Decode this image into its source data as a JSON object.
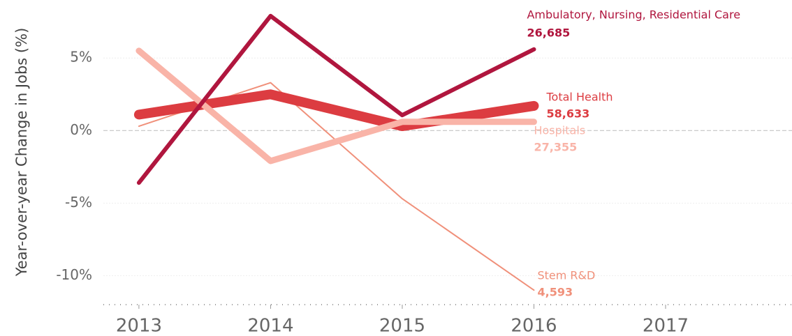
{
  "chart_data": {
    "type": "line",
    "y_label": "Year-over-year Change in Jobs (%)",
    "x": [
      2013,
      2014,
      2015,
      2016
    ],
    "xlim": [
      2012.73,
      2017.96
    ],
    "xticks": [
      2013,
      2014,
      2015,
      2016,
      2017
    ],
    "ylim": [
      -12,
      9
    ],
    "yticks": [
      {
        "value": 5,
        "label": "5%"
      },
      {
        "value": 0,
        "label": "0%"
      },
      {
        "value": -5,
        "label": "-5%"
      },
      {
        "value": -10,
        "label": "-10%"
      }
    ],
    "grid": true,
    "series": [
      {
        "name": "Stem R&D",
        "color": "#f0907a",
        "values": [
          0.3,
          3.3,
          -4.7,
          -11.0
        ],
        "end_value": "4,593"
      },
      {
        "name": "Total Health",
        "color": "#dc3c41",
        "values": [
          1.1,
          2.5,
          0.3,
          1.7
        ],
        "end_value": "58,633"
      },
      {
        "name": "Hospitals",
        "color": "#f9b4a8",
        "values": [
          5.5,
          -2.1,
          0.6,
          0.6
        ],
        "end_value": "27,355"
      },
      {
        "name": "Ambulatory, Nursing, Residential Care",
        "color": "#b0163e",
        "values": [
          -3.6,
          7.9,
          1.06,
          5.6
        ],
        "end_value": "26,685"
      }
    ]
  }
}
